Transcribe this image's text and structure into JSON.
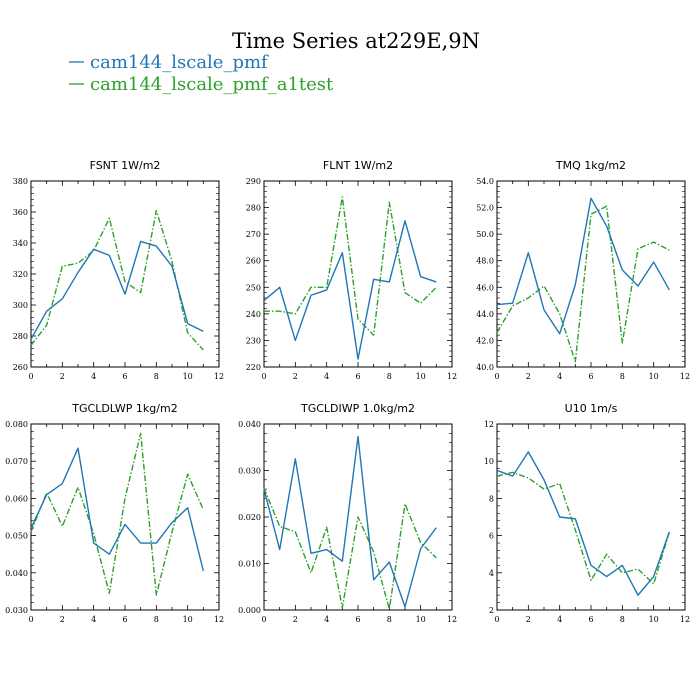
{
  "figure": {
    "title": "Time Series at229E,9N",
    "legend": [
      {
        "label": "cam144_lscale_pmf",
        "color": "#1f77b4",
        "dash": "solid"
      },
      {
        "label": "cam144_lscale_pmf_a1test",
        "color": "#2ca02c",
        "dash": "dashdot"
      }
    ]
  },
  "chart_data": [
    {
      "type": "line",
      "title": "FSNT",
      "unit": "1W/m2",
      "xlim": [
        0,
        12
      ],
      "ylim": [
        260,
        380
      ],
      "xticks": [
        "0",
        "2",
        "4",
        "6",
        "8",
        "10",
        "12"
      ],
      "yticks": [
        "260",
        "280",
        "300",
        "320",
        "340",
        "360",
        "380"
      ],
      "x": [
        0,
        1,
        2,
        3,
        4,
        5,
        6,
        7,
        8,
        9,
        10,
        11
      ],
      "series": [
        {
          "name": "cam144_lscale_pmf",
          "values": [
            278,
            296,
            304,
            321,
            336,
            332,
            307,
            341,
            338,
            325,
            288,
            283
          ]
        },
        {
          "name": "cam144_lscale_pmf_a1test",
          "values": [
            274,
            287,
            325,
            327,
            335,
            356,
            315,
            308,
            361,
            328,
            282,
            271
          ]
        }
      ]
    },
    {
      "type": "line",
      "title": "FLNT",
      "unit": "1W/m2",
      "xlim": [
        0,
        12
      ],
      "ylim": [
        220,
        290
      ],
      "xticks": [
        "0",
        "2",
        "4",
        "6",
        "8",
        "10",
        "12"
      ],
      "yticks": [
        "220",
        "230",
        "240",
        "250",
        "260",
        "270",
        "280",
        "290"
      ],
      "x": [
        0,
        1,
        2,
        3,
        4,
        5,
        6,
        7,
        8,
        9,
        10,
        11
      ],
      "series": [
        {
          "name": "cam144_lscale_pmf",
          "values": [
            245,
            250,
            230,
            247,
            249,
            263,
            223,
            253,
            252,
            275,
            254,
            252
          ]
        },
        {
          "name": "cam144_lscale_pmf_a1test",
          "values": [
            241,
            241,
            240,
            250,
            250,
            284,
            238,
            232,
            282,
            248,
            244,
            250
          ]
        }
      ]
    },
    {
      "type": "line",
      "title": "TMQ",
      "unit": "1kg/m2",
      "xlim": [
        0,
        12
      ],
      "ylim": [
        40,
        54
      ],
      "xticks": [
        "0",
        "2",
        "4",
        "6",
        "8",
        "10",
        "12"
      ],
      "yticks": [
        "40.0",
        "42.0",
        "44.0",
        "46.0",
        "48.0",
        "50.0",
        "52.0",
        "54.0"
      ],
      "x": [
        0,
        1,
        2,
        3,
        4,
        5,
        6,
        7,
        8,
        9,
        10,
        11
      ],
      "series": [
        {
          "name": "cam144_lscale_pmf",
          "values": [
            44.7,
            44.8,
            48.6,
            44.3,
            42.5,
            46.2,
            52.7,
            50.6,
            47.3,
            46.1,
            47.9,
            45.8
          ]
        },
        {
          "name": "cam144_lscale_pmf_a1test",
          "values": [
            42.6,
            44.6,
            45.2,
            46.1,
            44.0,
            40.4,
            51.5,
            52.1,
            41.8,
            48.9,
            49.4,
            48.8
          ]
        }
      ]
    },
    {
      "type": "line",
      "title": "TGCLDLWP",
      "unit": "1kg/m2",
      "xlim": [
        0,
        12
      ],
      "ylim": [
        0.03,
        0.08
      ],
      "xticks": [
        "0",
        "2",
        "4",
        "6",
        "8",
        "10",
        "12"
      ],
      "yticks": [
        "0.030",
        "0.040",
        "0.050",
        "0.060",
        "0.070",
        "0.080"
      ],
      "x": [
        0,
        1,
        2,
        3,
        4,
        5,
        6,
        7,
        8,
        9,
        10,
        11
      ],
      "series": [
        {
          "name": "cam144_lscale_pmf",
          "values": [
            0.052,
            0.061,
            0.064,
            0.0735,
            0.048,
            0.045,
            0.053,
            0.048,
            0.048,
            0.0535,
            0.0575,
            0.0405
          ]
        },
        {
          "name": "cam144_lscale_pmf_a1test",
          "values": [
            0.051,
            0.0615,
            0.0525,
            0.063,
            0.0505,
            0.0345,
            0.06,
            0.0775,
            0.034,
            0.051,
            0.0665,
            0.057
          ]
        }
      ]
    },
    {
      "type": "line",
      "title": "TGCLDIWP",
      "unit": "1.0kg/m2",
      "xlim": [
        0,
        12
      ],
      "ylim": [
        0,
        0.04
      ],
      "xticks": [
        "0",
        "2",
        "4",
        "6",
        "8",
        "10",
        "12"
      ],
      "yticks": [
        "0.000",
        "0.010",
        "0.020",
        "0.030",
        "0.040"
      ],
      "x": [
        0,
        1,
        2,
        3,
        4,
        5,
        6,
        7,
        8,
        9,
        10,
        11
      ],
      "series": [
        {
          "name": "cam144_lscale_pmf",
          "values": [
            0.026,
            0.013,
            0.0325,
            0.0122,
            0.013,
            0.0105,
            0.0373,
            0.0065,
            0.0103,
            0.0007,
            0.0132,
            0.0177
          ]
        },
        {
          "name": "cam144_lscale_pmf_a1test",
          "values": [
            0.0262,
            0.018,
            0.0168,
            0.008,
            0.0178,
            0.0005,
            0.02,
            0.0125,
            0.0002,
            0.0228,
            0.0145,
            0.0112
          ]
        }
      ]
    },
    {
      "type": "line",
      "title": "U10",
      "unit": "1m/s",
      "xlim": [
        0,
        12
      ],
      "ylim": [
        2,
        12
      ],
      "xticks": [
        "0",
        "2",
        "4",
        "6",
        "8",
        "10",
        "12"
      ],
      "yticks": [
        "2",
        "4",
        "6",
        "8",
        "10",
        "12"
      ],
      "x": [
        0,
        1,
        2,
        3,
        4,
        5,
        6,
        7,
        8,
        9,
        10,
        11
      ],
      "series": [
        {
          "name": "cam144_lscale_pmf",
          "values": [
            9.5,
            9.2,
            10.5,
            9.0,
            7.0,
            6.9,
            4.4,
            3.8,
            4.4,
            2.8,
            3.8,
            6.2
          ]
        },
        {
          "name": "cam144_lscale_pmf_a1test",
          "values": [
            9.2,
            9.4,
            9.1,
            8.5,
            8.8,
            6.3,
            3.6,
            5.0,
            4.0,
            4.2,
            3.4,
            6.2
          ]
        }
      ]
    }
  ]
}
